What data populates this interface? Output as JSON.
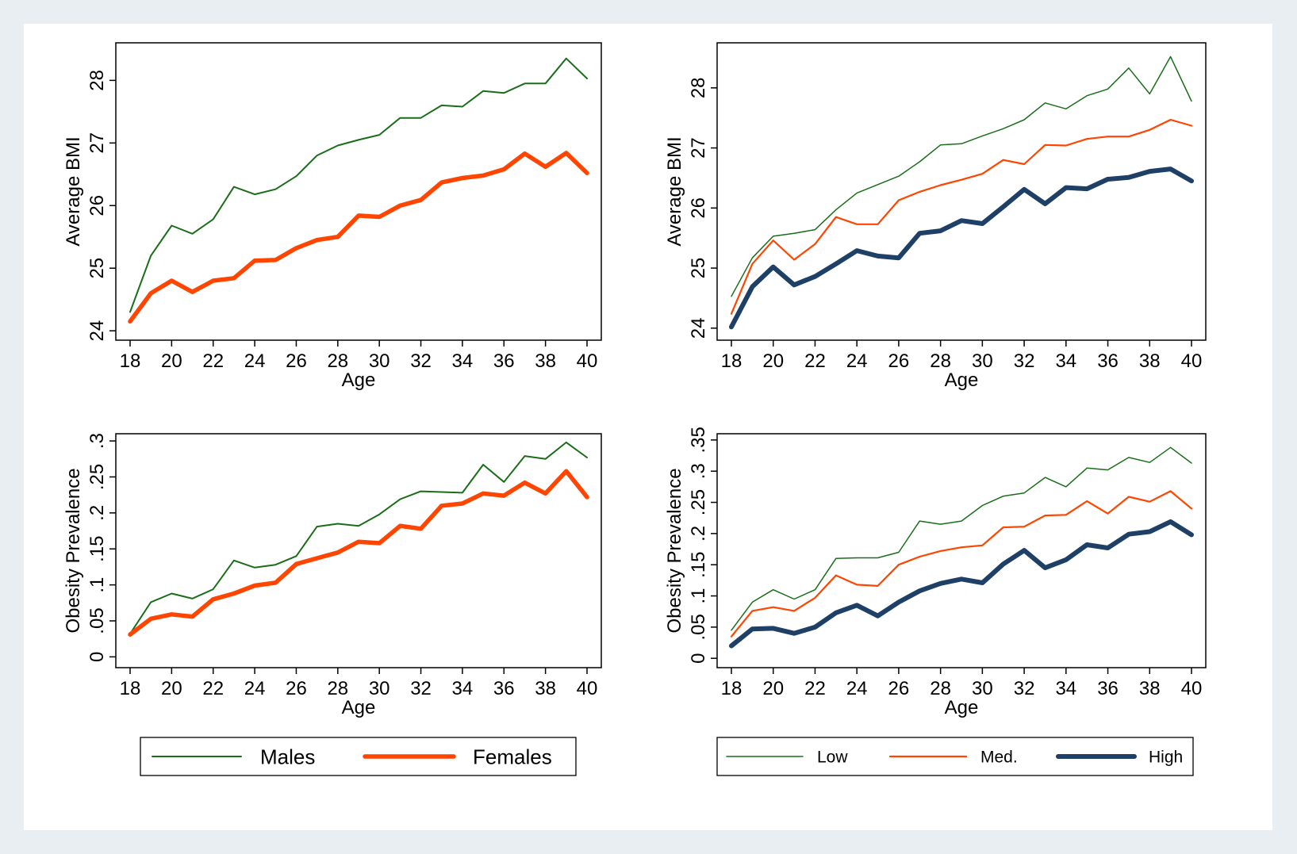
{
  "chart_data": [
    {
      "type": "line",
      "xlabel": "Age",
      "ylabel": "Average BMI",
      "x": [
        18,
        19,
        20,
        21,
        22,
        23,
        24,
        25,
        26,
        27,
        28,
        29,
        30,
        31,
        32,
        33,
        34,
        35,
        36,
        37,
        38,
        39,
        40
      ],
      "xticks": [
        "18",
        "20",
        "22",
        "24",
        "26",
        "28",
        "30",
        "32",
        "34",
        "36",
        "38",
        "40"
      ],
      "yticks": [
        "24",
        "25",
        "26",
        "27",
        "28"
      ],
      "ylim": [
        23.85,
        28.6
      ],
      "series": [
        {
          "name": "Males",
          "color": "#1a6e1a",
          "values": [
            24.3,
            25.2,
            25.68,
            25.55,
            25.78,
            26.3,
            26.18,
            26.26,
            26.47,
            26.8,
            26.96,
            27.05,
            27.13,
            27.4,
            27.4,
            27.6,
            27.58,
            27.83,
            27.8,
            27.95,
            27.95,
            28.35,
            28.03
          ]
        },
        {
          "name": "Females",
          "color": "#ff4500",
          "values": [
            24.15,
            24.6,
            24.8,
            24.62,
            24.8,
            24.84,
            25.12,
            25.13,
            25.32,
            25.45,
            25.5,
            25.84,
            25.82,
            26.0,
            26.09,
            26.37,
            26.44,
            26.48,
            26.58,
            26.83,
            26.62,
            26.84,
            26.52
          ]
        }
      ]
    },
    {
      "type": "line",
      "xlabel": "Age",
      "ylabel": "Average BMI",
      "x": [
        18,
        19,
        20,
        21,
        22,
        23,
        24,
        25,
        26,
        27,
        28,
        29,
        30,
        31,
        32,
        33,
        34,
        35,
        36,
        37,
        38,
        39,
        40
      ],
      "xticks": [
        "18",
        "20",
        "22",
        "24",
        "26",
        "28",
        "30",
        "32",
        "34",
        "36",
        "38",
        "40"
      ],
      "yticks": [
        "24",
        "25",
        "26",
        "27",
        "28"
      ],
      "ylim": [
        23.8,
        28.75
      ],
      "series": [
        {
          "name": "Low",
          "color": "#1a6e1a",
          "values": [
            24.53,
            25.17,
            25.53,
            25.58,
            25.64,
            25.97,
            26.25,
            26.39,
            26.53,
            26.77,
            27.05,
            27.07,
            27.2,
            27.32,
            27.47,
            27.75,
            27.65,
            27.87,
            27.98,
            28.33,
            27.9,
            28.52,
            27.78
          ]
        },
        {
          "name": "Med.",
          "color": "#ff4500",
          "values": [
            24.24,
            25.07,
            25.46,
            25.14,
            25.4,
            25.85,
            25.73,
            25.73,
            26.13,
            26.27,
            26.38,
            26.47,
            26.57,
            26.8,
            26.73,
            27.05,
            27.04,
            27.15,
            27.19,
            27.19,
            27.3,
            27.47,
            27.37
          ]
        },
        {
          "name": "High",
          "color": "#1e3f66",
          "values": [
            24.02,
            24.69,
            25.02,
            24.72,
            24.86,
            25.07,
            25.29,
            25.2,
            25.17,
            25.58,
            25.62,
            25.79,
            25.74,
            26.02,
            26.31,
            26.07,
            26.34,
            26.32,
            26.48,
            26.51,
            26.61,
            26.65,
            26.45
          ]
        }
      ]
    },
    {
      "type": "line",
      "xlabel": "Age",
      "ylabel": "Obesity Prevalence",
      "x": [
        18,
        19,
        20,
        21,
        22,
        23,
        24,
        25,
        26,
        27,
        28,
        29,
        30,
        31,
        32,
        33,
        34,
        35,
        36,
        37,
        38,
        39,
        40
      ],
      "xticks": [
        "18",
        "20",
        "22",
        "24",
        "26",
        "28",
        "30",
        "32",
        "34",
        "36",
        "38",
        "40"
      ],
      "yticks": [
        "0",
        ".05",
        ".1",
        ".15",
        ".2",
        ".25",
        ".3"
      ],
      "ylim": [
        -0.015,
        0.31
      ],
      "series": [
        {
          "name": "Males",
          "color": "#1a6e1a",
          "values": [
            0.032,
            0.076,
            0.088,
            0.081,
            0.094,
            0.134,
            0.124,
            0.128,
            0.14,
            0.181,
            0.185,
            0.182,
            0.198,
            0.219,
            0.23,
            0.229,
            0.228,
            0.267,
            0.243,
            0.279,
            0.275,
            0.298,
            0.277
          ]
        },
        {
          "name": "Females",
          "color": "#ff4500",
          "values": [
            0.031,
            0.053,
            0.059,
            0.056,
            0.08,
            0.088,
            0.099,
            0.103,
            0.129,
            0.137,
            0.145,
            0.16,
            0.158,
            0.182,
            0.178,
            0.21,
            0.213,
            0.227,
            0.224,
            0.242,
            0.227,
            0.258,
            0.222
          ]
        }
      ]
    },
    {
      "type": "line",
      "xlabel": "Age",
      "ylabel": "Obesity Prevalence",
      "x": [
        18,
        19,
        20,
        21,
        22,
        23,
        24,
        25,
        26,
        27,
        28,
        29,
        30,
        31,
        32,
        33,
        34,
        35,
        36,
        37,
        38,
        39,
        40
      ],
      "xticks": [
        "18",
        "20",
        "22",
        "24",
        "26",
        "28",
        "30",
        "32",
        "34",
        "36",
        "38",
        "40"
      ],
      "yticks": [
        "0",
        ".05",
        ".1",
        ".15",
        ".2",
        ".25",
        ".3",
        ".35"
      ],
      "ylim": [
        -0.015,
        0.36
      ],
      "series": [
        {
          "name": "Low",
          "color": "#1a6e1a",
          "values": [
            0.045,
            0.09,
            0.11,
            0.095,
            0.11,
            0.16,
            0.161,
            0.161,
            0.17,
            0.22,
            0.215,
            0.22,
            0.245,
            0.26,
            0.265,
            0.29,
            0.275,
            0.305,
            0.302,
            0.322,
            0.314,
            0.338,
            0.313
          ]
        },
        {
          "name": "Med.",
          "color": "#ff4500",
          "values": [
            0.035,
            0.076,
            0.082,
            0.076,
            0.097,
            0.133,
            0.118,
            0.116,
            0.15,
            0.163,
            0.172,
            0.178,
            0.181,
            0.21,
            0.211,
            0.229,
            0.23,
            0.252,
            0.232,
            0.259,
            0.251,
            0.268,
            0.24
          ]
        },
        {
          "name": "High",
          "color": "#1e3f66",
          "values": [
            0.02,
            0.047,
            0.048,
            0.04,
            0.05,
            0.073,
            0.085,
            0.068,
            0.09,
            0.108,
            0.12,
            0.127,
            0.121,
            0.151,
            0.173,
            0.145,
            0.158,
            0.182,
            0.177,
            0.199,
            0.203,
            0.219,
            0.198
          ]
        }
      ]
    }
  ],
  "legends": [
    {
      "items": [
        {
          "name": "Males",
          "color": "#1a6e1a"
        },
        {
          "name": "Females",
          "color": "#ff4500"
        }
      ]
    },
    {
      "items": [
        {
          "name": "Low",
          "color": "#1a6e1a"
        },
        {
          "name": "Med.",
          "color": "#ff4500"
        },
        {
          "name": "High",
          "color": "#1e3f66"
        }
      ]
    }
  ]
}
